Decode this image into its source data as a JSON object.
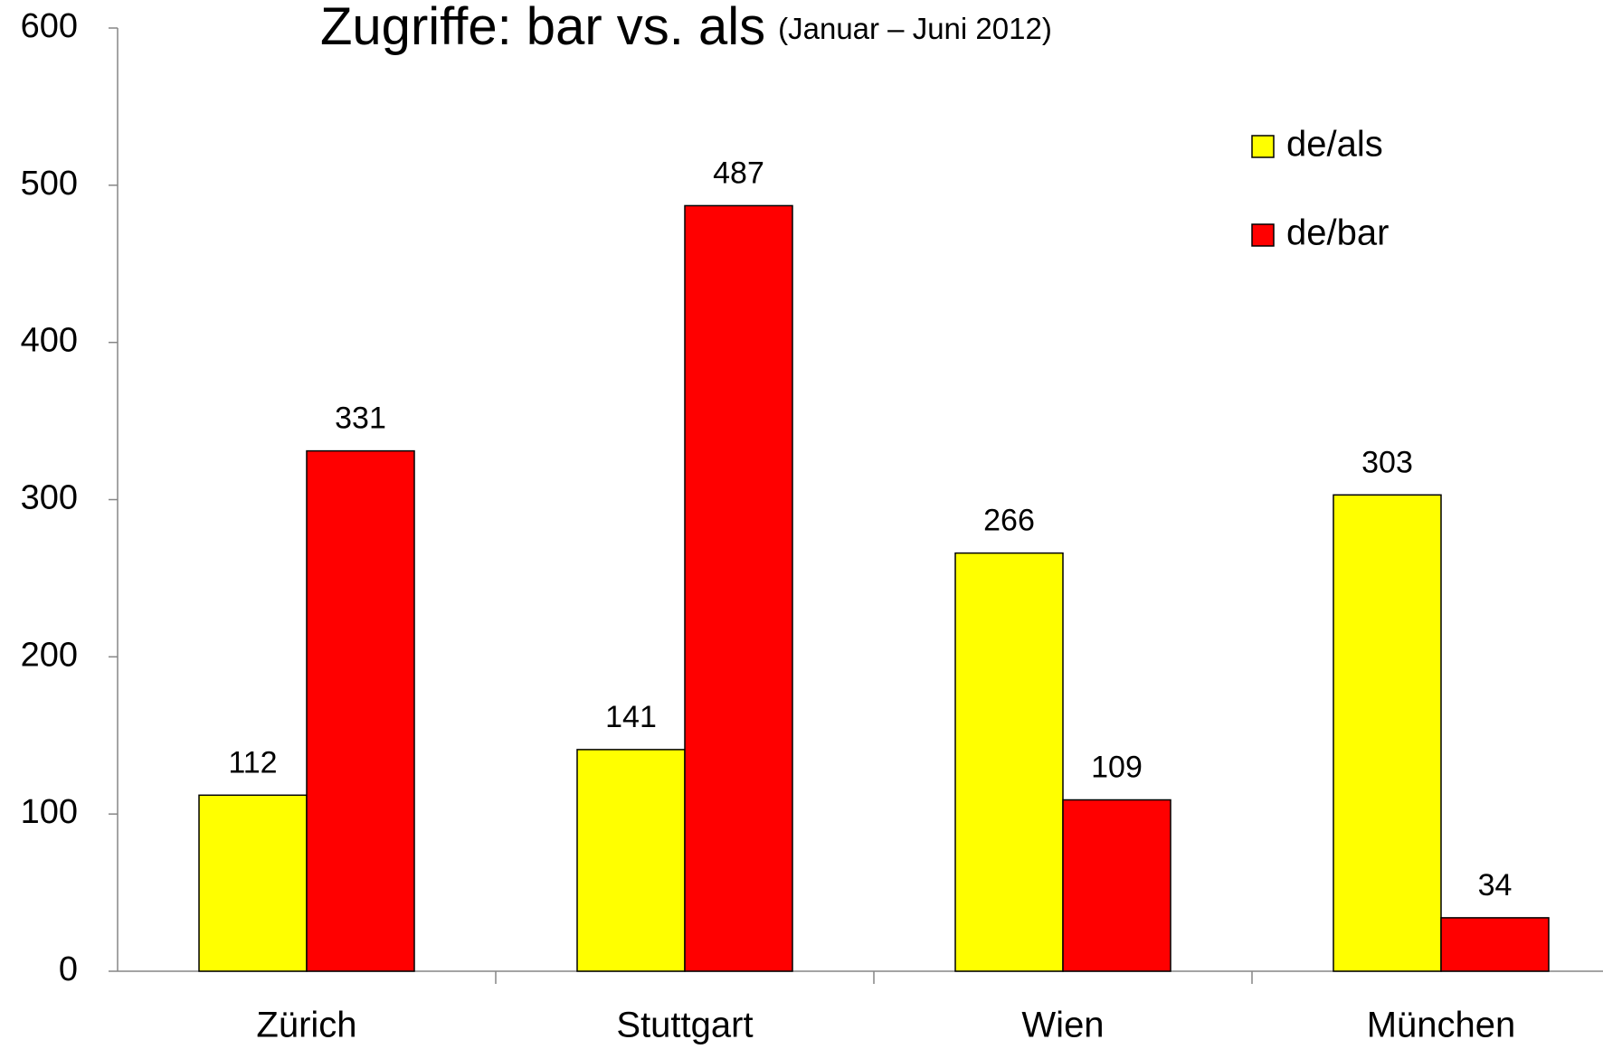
{
  "chart_data": {
    "type": "bar",
    "title": "Zugriffe: bar vs. als",
    "subtitle": "(Januar – Juni 2012)",
    "categories": [
      "Zürich",
      "Stuttgart",
      "Wien",
      "München"
    ],
    "series": [
      {
        "name": "de/als",
        "color": "#ffff00",
        "values": [
          112,
          141,
          266,
          303
        ]
      },
      {
        "name": "de/bar",
        "color": "#ff0000",
        "values": [
          331,
          487,
          109,
          34
        ]
      }
    ],
    "ylim": [
      0,
      600
    ],
    "yticks": [
      0,
      100,
      200,
      300,
      400,
      500,
      600
    ],
    "grid": false,
    "legend": "upper right",
    "data_labels": true
  }
}
